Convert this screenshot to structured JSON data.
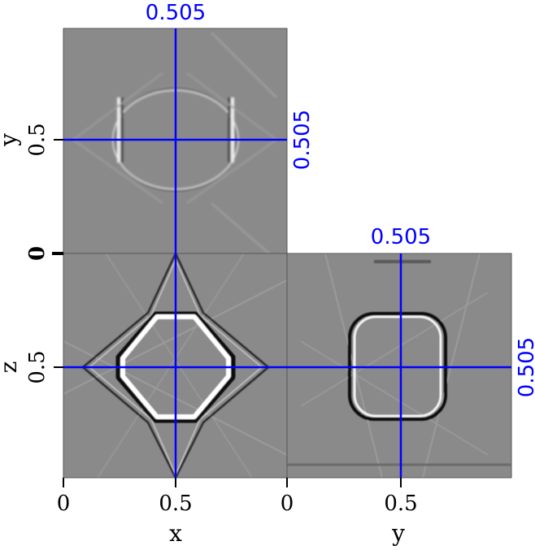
{
  "chart_data": {
    "type": "heatmap",
    "description_kind": "three orthogonal slices of a 3D volume",
    "panels": [
      {
        "name": "x-y slice (top)",
        "xlabel": "",
        "ylabel": "y",
        "yticks": [
          "0.5",
          "0"
        ]
      },
      {
        "name": "x-z slice (bottom-left)",
        "xlabel": "x",
        "ylabel": "z",
        "xticks": [
          "0",
          "0.5"
        ],
        "yticks": [
          "0.5"
        ]
      },
      {
        "name": "y-z slice (bottom-right)",
        "xlabel": "y",
        "xticks": [
          "0",
          "0.5"
        ]
      }
    ],
    "slice_positions": {
      "x": "0.505",
      "y": "0.505",
      "z": "0.505"
    },
    "xlim": [
      0,
      1
    ],
    "ylim": [
      0,
      1
    ],
    "zlim": [
      0,
      1
    ],
    "colormap": "grayscale",
    "crosshair_color": "#0000ff"
  },
  "labels": {
    "top_x_pos": "0.505",
    "top_y_pos": "0.505",
    "right_y_pos": "0.505",
    "right_z_pos": "0.505",
    "x_axis": "x",
    "y_axis_bottom": "y",
    "y_axis_left": "y",
    "z_axis": "z",
    "tick_x0": "0",
    "tick_x05": "0.5",
    "tick_y0": "0",
    "tick_y05": "0.5",
    "tick_left_y05": "0.5",
    "tick_left_0": "0",
    "tick_left_z05": "0.5"
  }
}
